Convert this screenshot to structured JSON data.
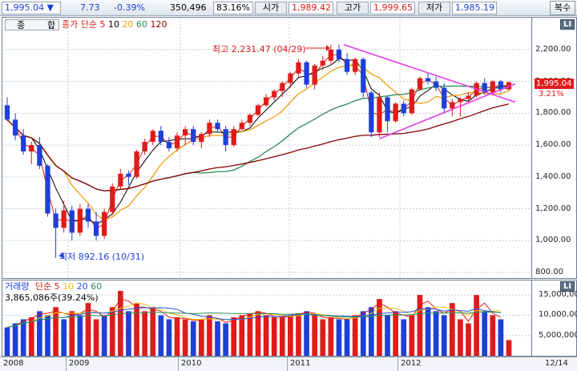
{
  "top": {
    "price": "1,995.04",
    "change_arrow": "▼",
    "change": "7.73",
    "change_pct": "-0.39%",
    "volume": "350,496",
    "ratio": "83.16%",
    "open_label": "시가",
    "open": "1,989.42",
    "high_label": "고가",
    "high": "1,999.65",
    "low_label": "저가",
    "low": "1,985.19",
    "restore_button": "복수"
  },
  "price_panel": {
    "tab1": "종",
    "tab2": "합",
    "ma_label": "종가 단순",
    "ma": [
      "5",
      "10",
      "20",
      "60",
      "120"
    ],
    "ma_colors": [
      "#e01b1b",
      "#000000",
      "#f39c12",
      "#2e8b57",
      "#8b0000"
    ],
    "current_price_tag": "1,995.04",
    "current_pct_tag": "3.21%",
    "max_annotation": "최고 2,231.47 (04/29)",
    "min_annotation": "최저 892.16 (10/31)",
    "y_ticks": [
      "2,200.00",
      "2,000.00",
      "1,800.00",
      "1,600.00",
      "1,400.00",
      "1,200.00",
      "1,000.00",
      "800.00"
    ],
    "side_button": "LI"
  },
  "volume_panel": {
    "label": "거래량",
    "ma_label": "단순",
    "ma": [
      "5",
      "10",
      "20",
      "60"
    ],
    "ma_colors": [
      "#e01b1b",
      "#f1c40f",
      "#2255dd",
      "#2e8b57"
    ],
    "volume_value": "3,865,086주(39.24%)",
    "y_ticks": [
      "15,000,000",
      "10,000,000",
      "5,000,000"
    ],
    "side_button": "LI"
  },
  "x_axis": {
    "years": [
      "2008",
      "2009",
      "2010",
      "2011",
      "2012"
    ],
    "date_label": "12/14"
  },
  "colors": {
    "up_candle": "#e01b1b",
    "down_candle": "#1f3fd6",
    "trendline": "#e43ee4"
  },
  "chart_data": {
    "type": "candlestick",
    "price_ylim": [
      800,
      2300
    ],
    "candles": [
      {
        "o": 1850,
        "h": 1900,
        "l": 1750,
        "c": 1760
      },
      {
        "o": 1760,
        "h": 1800,
        "l": 1630,
        "c": 1660
      },
      {
        "o": 1660,
        "h": 1700,
        "l": 1540,
        "c": 1560
      },
      {
        "o": 1560,
        "h": 1620,
        "l": 1480,
        "c": 1600
      },
      {
        "o": 1600,
        "h": 1650,
        "l": 1450,
        "c": 1470
      },
      {
        "o": 1470,
        "h": 1480,
        "l": 1150,
        "c": 1170
      },
      {
        "o": 1170,
        "h": 1200,
        "l": 892,
        "c": 1080
      },
      {
        "o": 1080,
        "h": 1250,
        "l": 1050,
        "c": 1190
      },
      {
        "o": 1190,
        "h": 1220,
        "l": 1000,
        "c": 1050
      },
      {
        "o": 1050,
        "h": 1230,
        "l": 1030,
        "c": 1200
      },
      {
        "o": 1200,
        "h": 1230,
        "l": 1080,
        "c": 1120
      },
      {
        "o": 1120,
        "h": 1180,
        "l": 1000,
        "c": 1030
      },
      {
        "o": 1030,
        "h": 1200,
        "l": 1010,
        "c": 1180
      },
      {
        "o": 1180,
        "h": 1360,
        "l": 1160,
        "c": 1340
      },
      {
        "o": 1340,
        "h": 1450,
        "l": 1320,
        "c": 1420
      },
      {
        "o": 1420,
        "h": 1440,
        "l": 1350,
        "c": 1400
      },
      {
        "o": 1400,
        "h": 1570,
        "l": 1390,
        "c": 1560
      },
      {
        "o": 1560,
        "h": 1640,
        "l": 1540,
        "c": 1620
      },
      {
        "o": 1620,
        "h": 1700,
        "l": 1600,
        "c": 1690
      },
      {
        "o": 1690,
        "h": 1720,
        "l": 1600,
        "c": 1620
      },
      {
        "o": 1620,
        "h": 1650,
        "l": 1560,
        "c": 1580
      },
      {
        "o": 1580,
        "h": 1680,
        "l": 1560,
        "c": 1660
      },
      {
        "o": 1660,
        "h": 1720,
        "l": 1600,
        "c": 1700
      },
      {
        "o": 1700,
        "h": 1720,
        "l": 1600,
        "c": 1620
      },
      {
        "o": 1620,
        "h": 1680,
        "l": 1580,
        "c": 1670
      },
      {
        "o": 1670,
        "h": 1760,
        "l": 1650,
        "c": 1740
      },
      {
        "o": 1740,
        "h": 1760,
        "l": 1680,
        "c": 1700
      },
      {
        "o": 1700,
        "h": 1720,
        "l": 1560,
        "c": 1600
      },
      {
        "o": 1600,
        "h": 1720,
        "l": 1590,
        "c": 1700
      },
      {
        "o": 1700,
        "h": 1760,
        "l": 1690,
        "c": 1740
      },
      {
        "o": 1740,
        "h": 1800,
        "l": 1720,
        "c": 1790
      },
      {
        "o": 1790,
        "h": 1860,
        "l": 1780,
        "c": 1850
      },
      {
        "o": 1850,
        "h": 1920,
        "l": 1840,
        "c": 1900
      },
      {
        "o": 1900,
        "h": 1950,
        "l": 1880,
        "c": 1940
      },
      {
        "o": 1940,
        "h": 2000,
        "l": 1900,
        "c": 1990
      },
      {
        "o": 1990,
        "h": 2060,
        "l": 1960,
        "c": 2050
      },
      {
        "o": 2050,
        "h": 2140,
        "l": 2030,
        "c": 2120
      },
      {
        "o": 2120,
        "h": 2130,
        "l": 1960,
        "c": 1980
      },
      {
        "o": 1980,
        "h": 2110,
        "l": 1950,
        "c": 2100
      },
      {
        "o": 2100,
        "h": 2160,
        "l": 2070,
        "c": 2130
      },
      {
        "o": 2130,
        "h": 2231,
        "l": 2110,
        "c": 2200
      },
      {
        "o": 2200,
        "h": 2231,
        "l": 2120,
        "c": 2140
      },
      {
        "o": 2140,
        "h": 2180,
        "l": 2040,
        "c": 2060
      },
      {
        "o": 2060,
        "h": 2150,
        "l": 2040,
        "c": 2140
      },
      {
        "o": 2140,
        "h": 2150,
        "l": 1900,
        "c": 1930
      },
      {
        "o": 1930,
        "h": 1940,
        "l": 1650,
        "c": 1680
      },
      {
        "o": 1680,
        "h": 1930,
        "l": 1650,
        "c": 1900
      },
      {
        "o": 1900,
        "h": 1910,
        "l": 1680,
        "c": 1750
      },
      {
        "o": 1750,
        "h": 1870,
        "l": 1740,
        "c": 1860
      },
      {
        "o": 1860,
        "h": 1880,
        "l": 1780,
        "c": 1800
      },
      {
        "o": 1800,
        "h": 1960,
        "l": 1790,
        "c": 1950
      },
      {
        "o": 1950,
        "h": 2030,
        "l": 1940,
        "c": 2020
      },
      {
        "o": 2020,
        "h": 2050,
        "l": 1980,
        "c": 2000
      },
      {
        "o": 2000,
        "h": 2030,
        "l": 1940,
        "c": 1960
      },
      {
        "o": 1960,
        "h": 1990,
        "l": 1800,
        "c": 1830
      },
      {
        "o": 1830,
        "h": 1890,
        "l": 1780,
        "c": 1870
      },
      {
        "o": 1870,
        "h": 1900,
        "l": 1780,
        "c": 1890
      },
      {
        "o": 1890,
        "h": 1930,
        "l": 1870,
        "c": 1910
      },
      {
        "o": 1910,
        "h": 2000,
        "l": 1900,
        "c": 1990
      },
      {
        "o": 1990,
        "h": 2020,
        "l": 1920,
        "c": 1930
      },
      {
        "o": 1930,
        "h": 2010,
        "l": 1920,
        "c": 2000
      },
      {
        "o": 2000,
        "h": 2010,
        "l": 1930,
        "c": 1950
      },
      {
        "o": 1950,
        "h": 2000,
        "l": 1940,
        "c": 1995
      }
    ],
    "volume_ylim": [
      0,
      17000000
    ],
    "volume_colors": [
      "down",
      "down",
      "down",
      "up",
      "down",
      "down",
      "up",
      "down",
      "up",
      "down",
      "up",
      "up",
      "down",
      "up",
      "up",
      "down",
      "up",
      "up",
      "up",
      "down",
      "down",
      "up",
      "up",
      "down",
      "up",
      "up",
      "down",
      "down",
      "up",
      "up",
      "up",
      "up",
      "up",
      "up",
      "up",
      "up",
      "up",
      "down",
      "up",
      "up",
      "up",
      "down",
      "down",
      "up",
      "down",
      "down",
      "up",
      "down",
      "up",
      "down",
      "up",
      "up",
      "down",
      "down",
      "down",
      "up",
      "up",
      "up",
      "up",
      "down",
      "up",
      "down",
      "up"
    ],
    "volumes": [
      7000000,
      8000000,
      9000000,
      9500000,
      11000000,
      10000000,
      12000000,
      9000000,
      11000000,
      10000000,
      13000000,
      9000000,
      10000000,
      12000000,
      16000000,
      11000000,
      13000000,
      11000000,
      12000000,
      10000000,
      9000000,
      9500000,
      9000000,
      8500000,
      9000000,
      10000000,
      8500000,
      8000000,
      9500000,
      10000000,
      10500000,
      11000000,
      10000000,
      9500000,
      9500000,
      10000000,
      10500000,
      11000000,
      10000000,
      9000000,
      9500000,
      9000000,
      9000000,
      10000000,
      11000000,
      12000000,
      14000000,
      10000000,
      11000000,
      9000000,
      10000000,
      15000000,
      12000000,
      11000000,
      10000000,
      13000000,
      9000000,
      8000000,
      15000000,
      11000000,
      10000000,
      9000000,
      3865086
    ]
  }
}
